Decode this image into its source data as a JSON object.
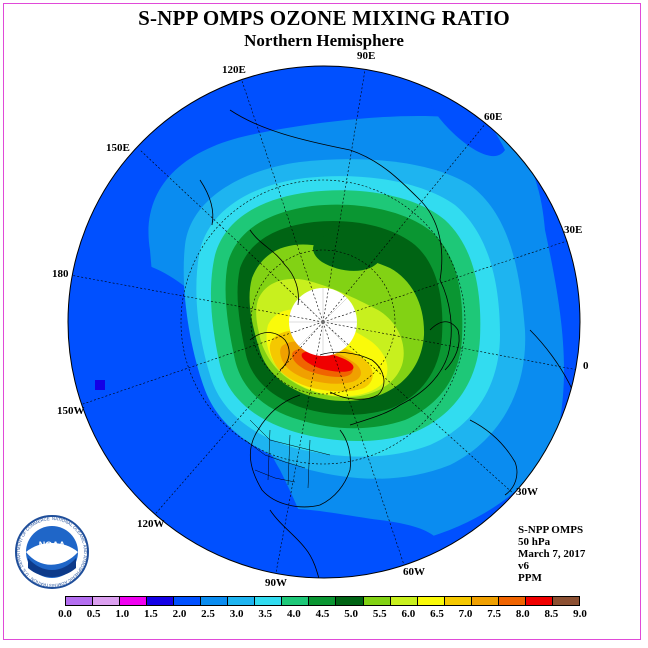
{
  "title": "S-NPP OMPS OZONE MIXING RATIO",
  "subtitle": "Northern Hemisphere",
  "longitude_labels": [
    "90E",
    "60E",
    "30E",
    "0",
    "30W",
    "60W",
    "90W",
    "120W",
    "150W",
    "180",
    "150E",
    "120E"
  ],
  "info": {
    "instrument": "S-NPP OMPS",
    "level": "50 hPa",
    "date": "March 7, 2017",
    "version": "v6",
    "units": "PPM"
  },
  "logo": {
    "text": "NOAA",
    "ring_text": "NATIONAL OCEANIC AND ATMOSPHERIC ADMINISTRATION · U.S. DEPARTMENT OF COMMERCE"
  },
  "legend": {
    "ticks": [
      "0.0",
      "0.5",
      "1.0",
      "1.5",
      "2.0",
      "2.5",
      "3.0",
      "3.5",
      "4.0",
      "4.5",
      "5.0",
      "5.5",
      "6.0",
      "6.5",
      "7.0",
      "7.5",
      "8.0",
      "8.5",
      "9.0"
    ],
    "colors": [
      "#b46ef0",
      "#dca0f0",
      "#f000f0",
      "#1400e6",
      "#0050ff",
      "#0a8cf0",
      "#1eb4f0",
      "#32dcf0",
      "#1ec878",
      "#0a9632",
      "#006414",
      "#82d214",
      "#c8f01e",
      "#fafa0a",
      "#f5c800",
      "#f0a000",
      "#f06400",
      "#f00000",
      "#8c5032"
    ]
  }
}
